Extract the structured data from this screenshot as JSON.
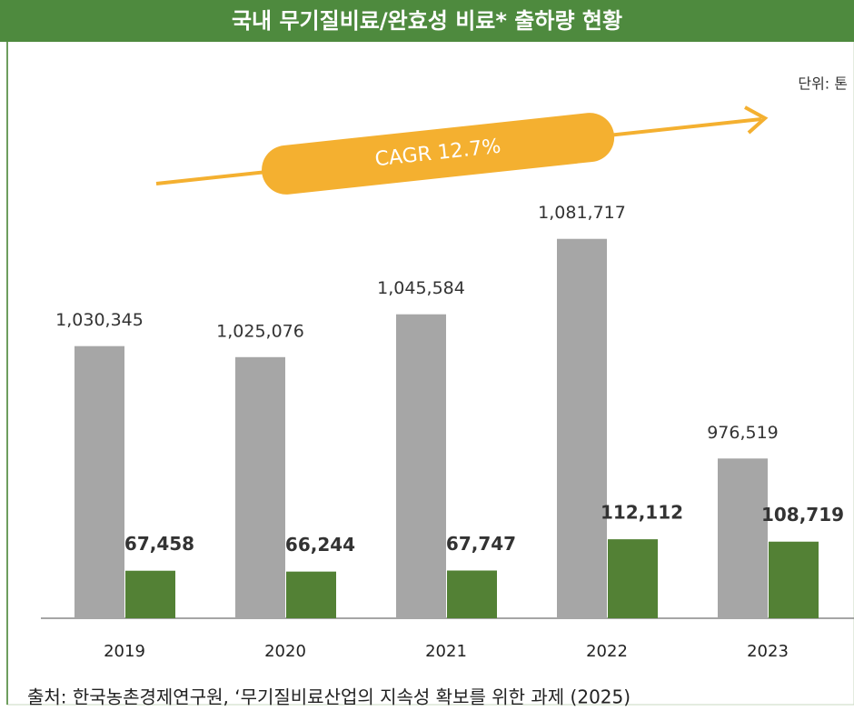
{
  "chart_data": {
    "type": "bar",
    "title": "국내 무기질비료/완효성 비료* 출하량 현황",
    "unit_note": "단위: 톤",
    "annotation": "CAGR 12.7%",
    "source": "출처: 한국농촌경제연구원, ‘무기질비료산업의 지속성 확보를 위한 과제 (2025)",
    "categories": [
      "2019",
      "2020",
      "2021",
      "2022",
      "2023"
    ],
    "series": [
      {
        "color": "#a6a6a6",
        "axis": "y2",
        "values": [
          1030345,
          1025076,
          1045584,
          1081717,
          976519
        ],
        "value_labels": [
          "1,030,345",
          "1,025,076",
          "1,045,584",
          "1,081,717",
          "976,519"
        ]
      },
      {
        "color": "#538135",
        "values": [
          67458,
          66244,
          67747,
          112112,
          108719
        ],
        "value_labels": [
          "67,458",
          "66,244",
          "67,747",
          "112,112",
          "108,719"
        ]
      }
    ],
    "ylim": [
      0,
      800000
    ],
    "y2lim": [
      900000,
      1170000
    ]
  }
}
